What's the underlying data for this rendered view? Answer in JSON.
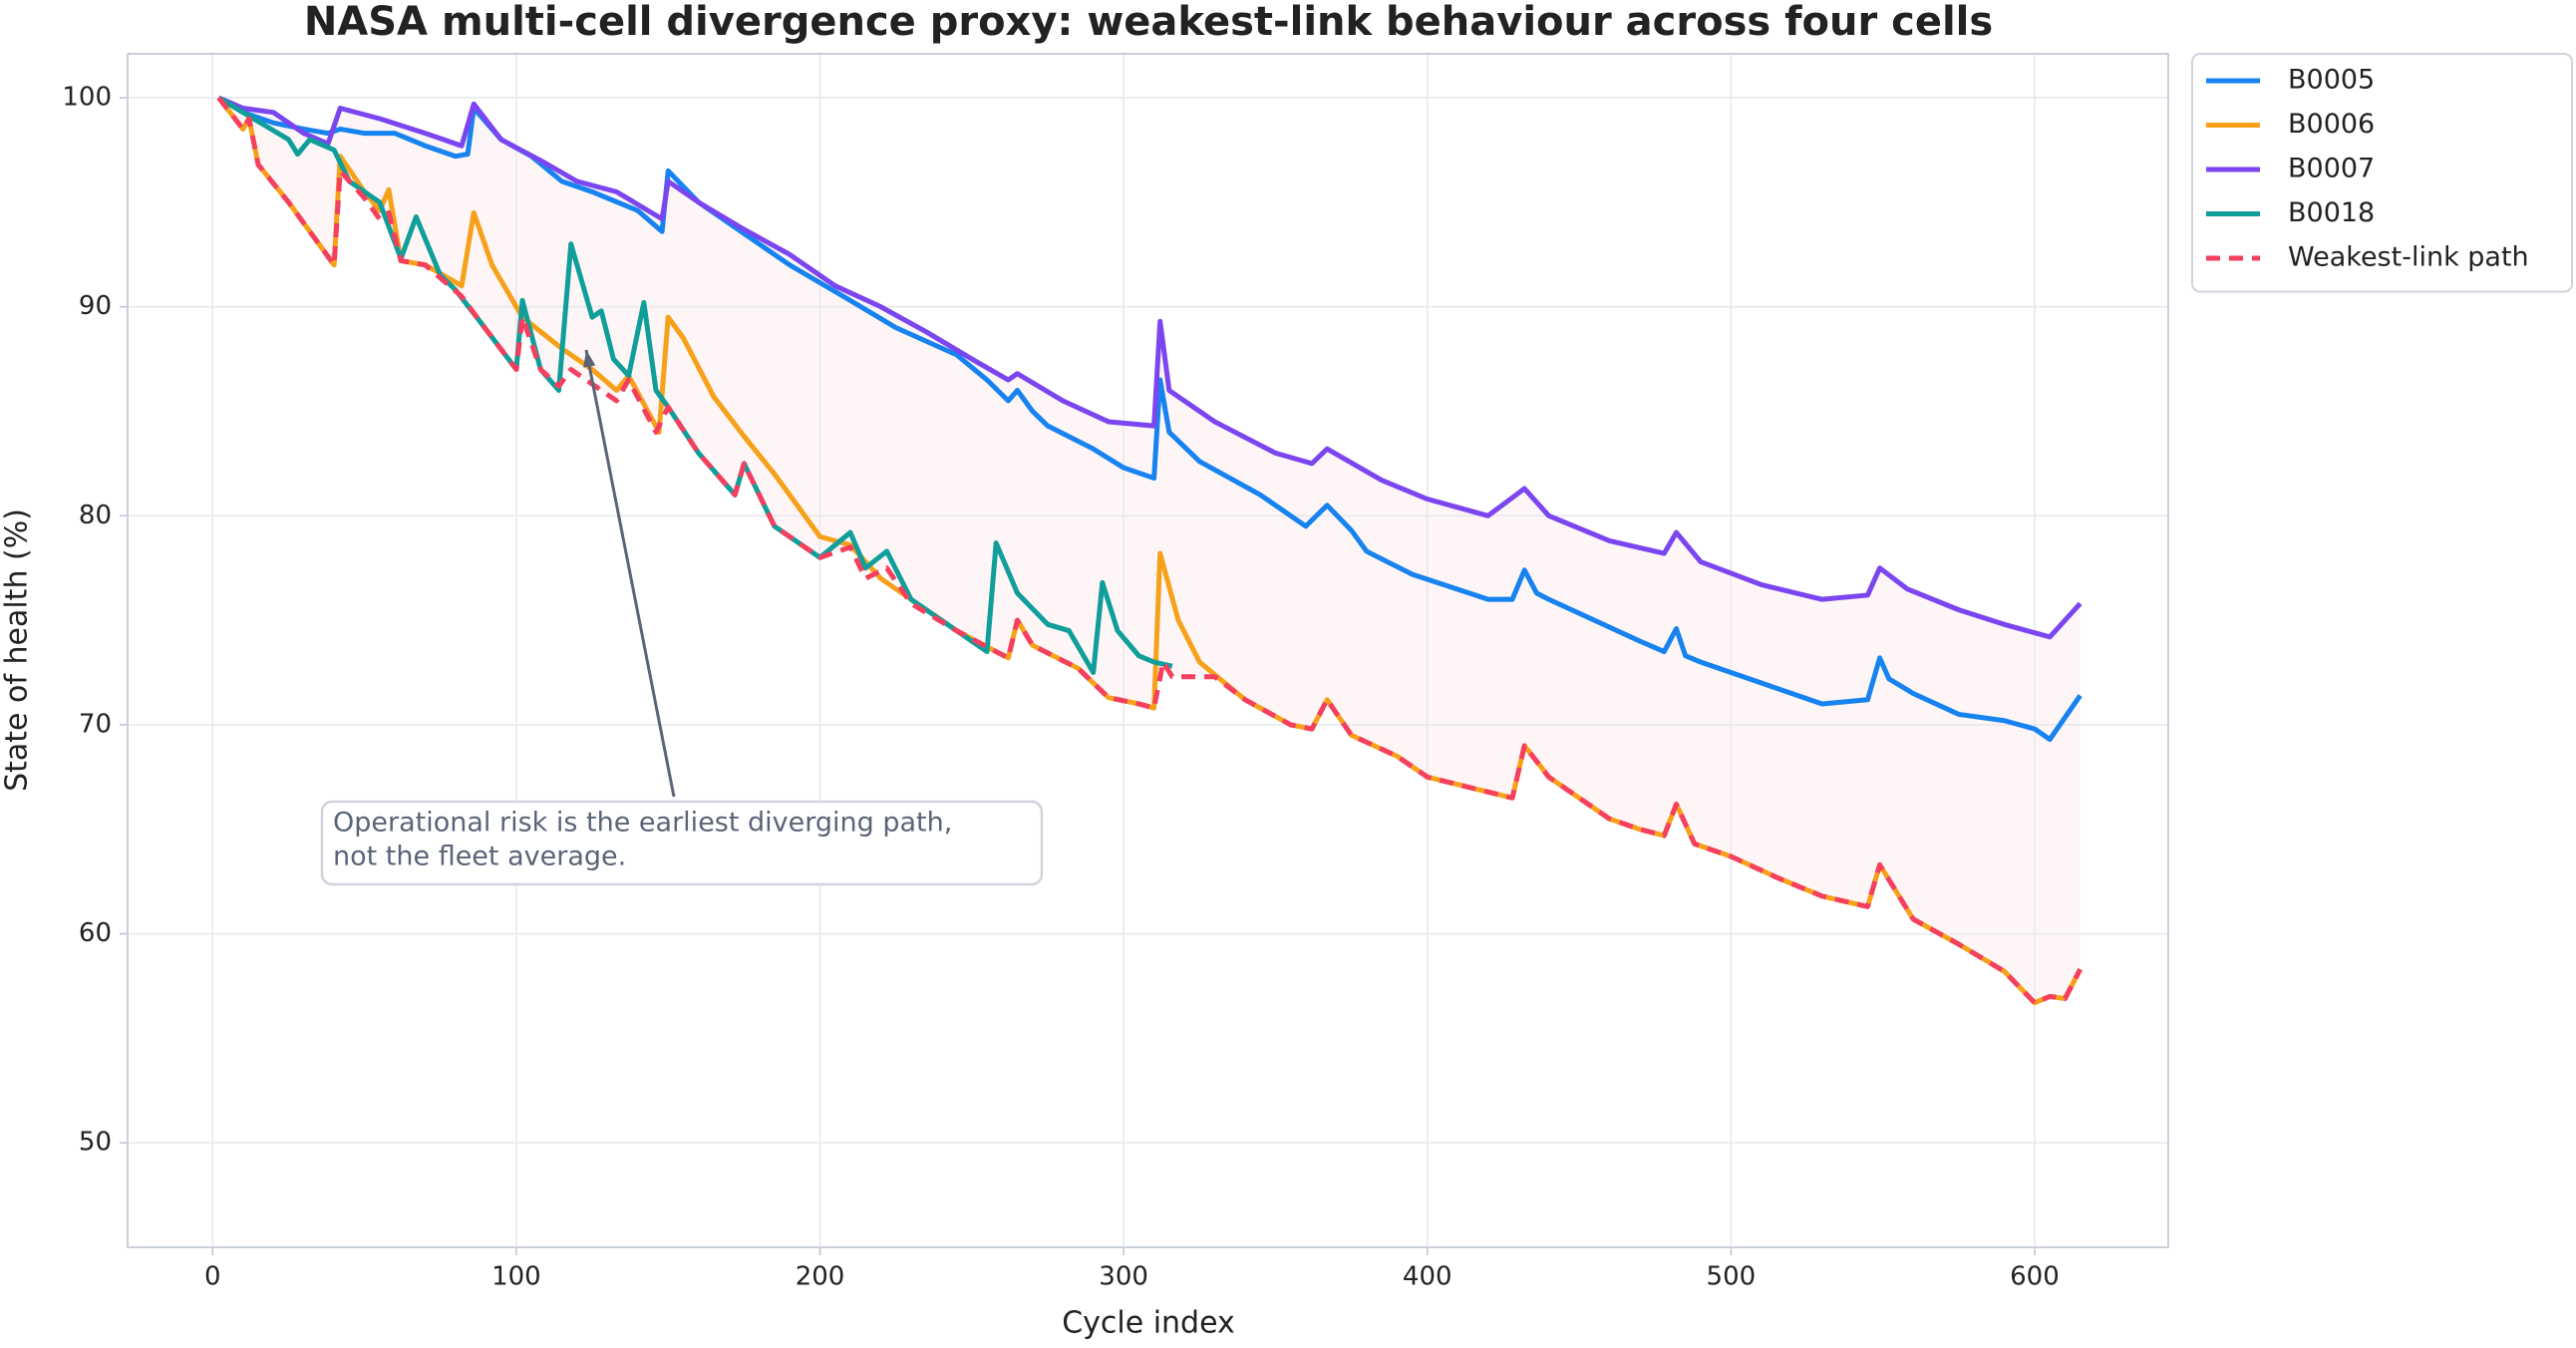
{
  "chart_data": {
    "type": "line",
    "title": "NASA multi-cell divergence proxy: weakest-link behaviour across four cells",
    "x_label": "Cycle index",
    "y_label": "State of health (%)",
    "xlim": [
      -28,
      644
    ],
    "ylim": [
      45,
      102.1
    ],
    "xticks": [
      0,
      100,
      200,
      300,
      400,
      500,
      600
    ],
    "yticks": [
      50,
      60,
      70,
      80,
      90,
      100
    ],
    "grid": true,
    "legend": "outside right",
    "band_color": "#fdeef2",
    "annotation": [
      "Operational risk is the earliest diverging path,",
      "not the fleet average."
    ],
    "series": [
      {
        "name": "B0005",
        "color": "#1683f0",
        "linestyle": "solid",
        "x": [
          2,
          10,
          20,
          30,
          38,
          42,
          50,
          60,
          70,
          80,
          84,
          86,
          95,
          105,
          115,
          125,
          130,
          140,
          148,
          150,
          160,
          175,
          190,
          210,
          225,
          245,
          255,
          262,
          265,
          270,
          275,
          290,
          300,
          310,
          312,
          315,
          325,
          345,
          355,
          360,
          367,
          375,
          380,
          395,
          420,
          428,
          432,
          436,
          440,
          470,
          478,
          482,
          485,
          490,
          510,
          530,
          545,
          549,
          552,
          560,
          575,
          590,
          600,
          605,
          615
        ],
        "values": [
          100,
          99.3,
          98.8,
          98.5,
          98.3,
          98.5,
          98.3,
          98.3,
          97.7,
          97.2,
          97.3,
          99.5,
          98,
          97.2,
          96,
          95.5,
          95.2,
          94.6,
          93.6,
          96.5,
          95,
          93.5,
          92,
          90.3,
          89,
          87.7,
          86.5,
          85.5,
          86,
          85,
          84.3,
          83.2,
          82.3,
          81.8,
          86.5,
          84,
          82.6,
          81,
          80,
          79.5,
          80.5,
          79.3,
          78.3,
          77.2,
          76,
          76,
          77.4,
          76.3,
          76,
          74,
          73.5,
          74.6,
          73.3,
          73,
          72,
          71,
          71.2,
          73.2,
          72.2,
          71.5,
          70.5,
          70.2,
          69.8,
          69.3,
          71.4
        ]
      },
      {
        "name": "B0006",
        "color": "#f7a11a",
        "linestyle": "solid",
        "x": [
          2,
          10,
          12,
          15,
          25,
          35,
          40,
          42,
          50,
          55,
          58,
          62,
          70,
          82,
          86,
          92,
          102,
          115,
          125,
          133,
          137,
          147,
          150,
          155,
          165,
          175,
          185,
          195,
          200,
          210,
          220,
          235,
          245,
          258,
          262,
          265,
          270,
          285,
          295,
          305,
          310,
          312,
          318,
          325,
          340,
          355,
          362,
          367,
          375,
          390,
          400,
          428,
          432,
          440,
          460,
          470,
          478,
          482,
          488,
          500,
          515,
          530,
          545,
          549,
          560,
          575,
          590,
          600,
          605,
          610,
          615
        ],
        "values": [
          100,
          98.5,
          99,
          96.8,
          95,
          93,
          92,
          97.2,
          95.5,
          94.6,
          95.6,
          92.2,
          92,
          91,
          94.5,
          92,
          89.5,
          88,
          87,
          86,
          86.7,
          84,
          89.5,
          88.5,
          85.7,
          83.8,
          82,
          80,
          79,
          78.6,
          77,
          75.5,
          74.5,
          73.5,
          73.2,
          75,
          73.8,
          72.7,
          71.3,
          71,
          70.8,
          78.2,
          75,
          73,
          71.2,
          70,
          69.8,
          71.2,
          69.5,
          68.5,
          67.5,
          66.5,
          69,
          67.5,
          65.5,
          65,
          64.7,
          66.2,
          64.3,
          63.7,
          62.7,
          61.8,
          61.3,
          63.3,
          60.7,
          59.5,
          58.2,
          56.7,
          57,
          56.9,
          58.3
        ]
      },
      {
        "name": "B0007",
        "color": "#7b45f0",
        "linestyle": "solid",
        "x": [
          2,
          10,
          20,
          30,
          38,
          42,
          55,
          70,
          82,
          86,
          95,
          108,
          120,
          133,
          148,
          150,
          160,
          175,
          190,
          205,
          220,
          235,
          250,
          262,
          265,
          280,
          295,
          310,
          312,
          315,
          330,
          350,
          362,
          367,
          385,
          400,
          420,
          432,
          440,
          460,
          478,
          482,
          490,
          510,
          530,
          545,
          549,
          558,
          575,
          590,
          605,
          615
        ],
        "values": [
          100,
          99.5,
          99.3,
          98.3,
          97.8,
          99.5,
          99,
          98.3,
          97.7,
          99.7,
          98,
          97,
          96,
          95.5,
          94.2,
          96,
          95,
          93.7,
          92.5,
          91,
          90,
          88.8,
          87.5,
          86.5,
          86.8,
          85.5,
          84.5,
          84.3,
          89.3,
          86,
          84.5,
          83,
          82.5,
          83.2,
          81.7,
          80.8,
          80,
          81.3,
          80,
          78.8,
          78.2,
          79.2,
          77.8,
          76.7,
          76,
          76.2,
          77.5,
          76.5,
          75.5,
          74.8,
          74.2,
          75.8
        ]
      },
      {
        "name": "B0018",
        "color": "#0f9e9a",
        "linestyle": "solid",
        "x": [
          2,
          10,
          25,
          28,
          32,
          40,
          45,
          55,
          62,
          67,
          75,
          80,
          88,
          100,
          102,
          108,
          114,
          118,
          125,
          128,
          132,
          137,
          142,
          146,
          150,
          160,
          172,
          175,
          185,
          200,
          210,
          215,
          222,
          230,
          245,
          255,
          258,
          265,
          275,
          282,
          290,
          293,
          298,
          305,
          310,
          316
        ],
        "values": [
          100,
          99.3,
          98,
          97.3,
          98,
          97.5,
          96,
          95,
          92.3,
          94.3,
          91.5,
          90.8,
          89.3,
          87,
          90.3,
          87,
          86,
          93,
          89.5,
          89.8,
          87.5,
          86.7,
          90.2,
          86,
          85.2,
          83,
          81,
          82.5,
          79.5,
          78,
          79.2,
          77.5,
          78.3,
          76,
          74.5,
          73.5,
          78.7,
          76.3,
          74.8,
          74.5,
          72.5,
          76.8,
          74.5,
          73.3,
          73,
          72.8
        ]
      },
      {
        "name": "Weakest-link path",
        "color": "#f43f5e",
        "linestyle": "dashed",
        "x": [
          2,
          10,
          12,
          15,
          25,
          35,
          40,
          42,
          50,
          55,
          58,
          62,
          70,
          82,
          88,
          100,
          102,
          108,
          114,
          118,
          125,
          133,
          137,
          146,
          150,
          160,
          172,
          175,
          185,
          200,
          210,
          215,
          222,
          230,
          245,
          258,
          262,
          265,
          270,
          285,
          295,
          305,
          310,
          313,
          316,
          320,
          330,
          340,
          355,
          362,
          367,
          375,
          390,
          400,
          428,
          432,
          440,
          460,
          470,
          478,
          482,
          488,
          500,
          515,
          530,
          545,
          549,
          560,
          575,
          590,
          600,
          605,
          610,
          615
        ],
        "values": [
          100,
          98.5,
          99,
          96.8,
          95,
          93,
          92,
          96.5,
          95.2,
          94.2,
          94.5,
          92.2,
          92,
          90.5,
          89.3,
          87,
          89.5,
          87,
          86.2,
          87,
          86.3,
          85.5,
          86.5,
          84,
          85.2,
          83,
          81,
          82.5,
          79.5,
          78,
          78.5,
          77,
          77.5,
          75.8,
          74.5,
          73.5,
          73.2,
          75,
          73.8,
          72.7,
          71.3,
          71,
          70.8,
          73,
          72.3,
          72.3,
          72.3,
          71.2,
          70,
          69.8,
          71.2,
          69.5,
          68.5,
          67.5,
          66.5,
          69,
          67.5,
          65.5,
          65,
          64.7,
          66.2,
          64.3,
          63.7,
          62.7,
          61.8,
          61.3,
          63.3,
          60.7,
          59.5,
          58.2,
          56.7,
          57,
          56.9,
          58.3
        ]
      }
    ]
  }
}
